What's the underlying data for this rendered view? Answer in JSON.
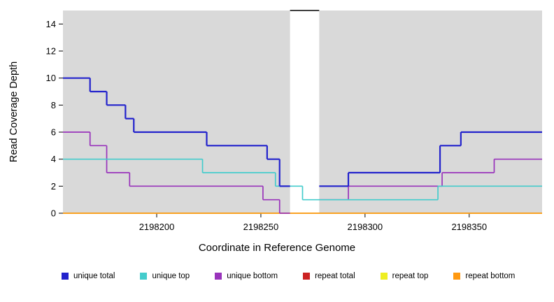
{
  "chart_data": {
    "type": "line",
    "subtype": "step",
    "title": "",
    "xlabel": "Coordinate in Reference Genome",
    "ylabel": "Read Coverage Depth",
    "xlim": [
      2198155,
      2198385
    ],
    "ylim": [
      0,
      15
    ],
    "xticks": [
      2198200,
      2198250,
      2198300,
      2198350
    ],
    "yticks": [
      0,
      2,
      4,
      6,
      8,
      10,
      12,
      14
    ],
    "grid": false,
    "plot_background": "#d9d9d9",
    "page_background": "#ffffff",
    "gap_region": {
      "x0": 2198264,
      "x1": 2198278,
      "color": "#ffffff"
    },
    "clip_line": {
      "x0": 2198264,
      "x1": 2198278,
      "y": 15,
      "color": "#000000"
    },
    "series": [
      {
        "name": "repeat total",
        "color": "#cc2222",
        "width": 1.4,
        "segments": [
          [
            2198155,
            2198385,
            0
          ]
        ]
      },
      {
        "name": "repeat top",
        "color": "#eeee22",
        "width": 1.4,
        "segments": [
          [
            2198155,
            2198385,
            0
          ]
        ]
      },
      {
        "name": "repeat bottom",
        "color": "#ff9911",
        "width": 1.6,
        "segments": [
          [
            2198155,
            2198385,
            0
          ]
        ]
      },
      {
        "name": "unique bottom",
        "color": "#9933bb",
        "width": 1.7,
        "segments": [
          [
            2198155,
            2198168,
            6
          ],
          [
            2198168,
            2198176,
            5
          ],
          [
            2198176,
            2198187,
            3
          ],
          [
            2198187,
            2198251,
            2
          ],
          [
            2198251,
            2198259,
            1
          ],
          [
            2198259,
            2198264,
            0
          ],
          [
            2198278,
            2198292,
            1
          ],
          [
            2198292,
            2198337,
            2
          ],
          [
            2198337,
            2198362,
            3
          ],
          [
            2198362,
            2198385,
            4
          ]
        ]
      },
      {
        "name": "unique top",
        "color": "#44cccc",
        "width": 1.7,
        "segments": [
          [
            2198155,
            2198222,
            4
          ],
          [
            2198222,
            2198257,
            3
          ],
          [
            2198257,
            2198270,
            2
          ],
          [
            2198270,
            2198335,
            1
          ],
          [
            2198335,
            2198385,
            2
          ]
        ]
      },
      {
        "name": "unique total",
        "color": "#2222cc",
        "width": 2.2,
        "segments": [
          [
            2198155,
            2198168,
            10
          ],
          [
            2198168,
            2198176,
            9
          ],
          [
            2198176,
            2198185,
            8
          ],
          [
            2198185,
            2198189,
            7
          ],
          [
            2198189,
            2198224,
            6
          ],
          [
            2198224,
            2198253,
            5
          ],
          [
            2198253,
            2198259,
            4
          ],
          [
            2198259,
            2198264,
            2
          ],
          [
            2198278,
            2198292,
            2
          ],
          [
            2198292,
            2198336,
            3
          ],
          [
            2198336,
            2198346,
            5
          ],
          [
            2198346,
            2198385,
            6
          ]
        ]
      }
    ],
    "legend": [
      {
        "label": "unique total",
        "color": "#2222cc"
      },
      {
        "label": "unique top",
        "color": "#44cccc"
      },
      {
        "label": "unique bottom",
        "color": "#9933bb"
      },
      {
        "label": "repeat total",
        "color": "#cc2222"
      },
      {
        "label": "repeat top",
        "color": "#eeee22"
      },
      {
        "label": "repeat bottom",
        "color": "#ff9911"
      }
    ]
  }
}
